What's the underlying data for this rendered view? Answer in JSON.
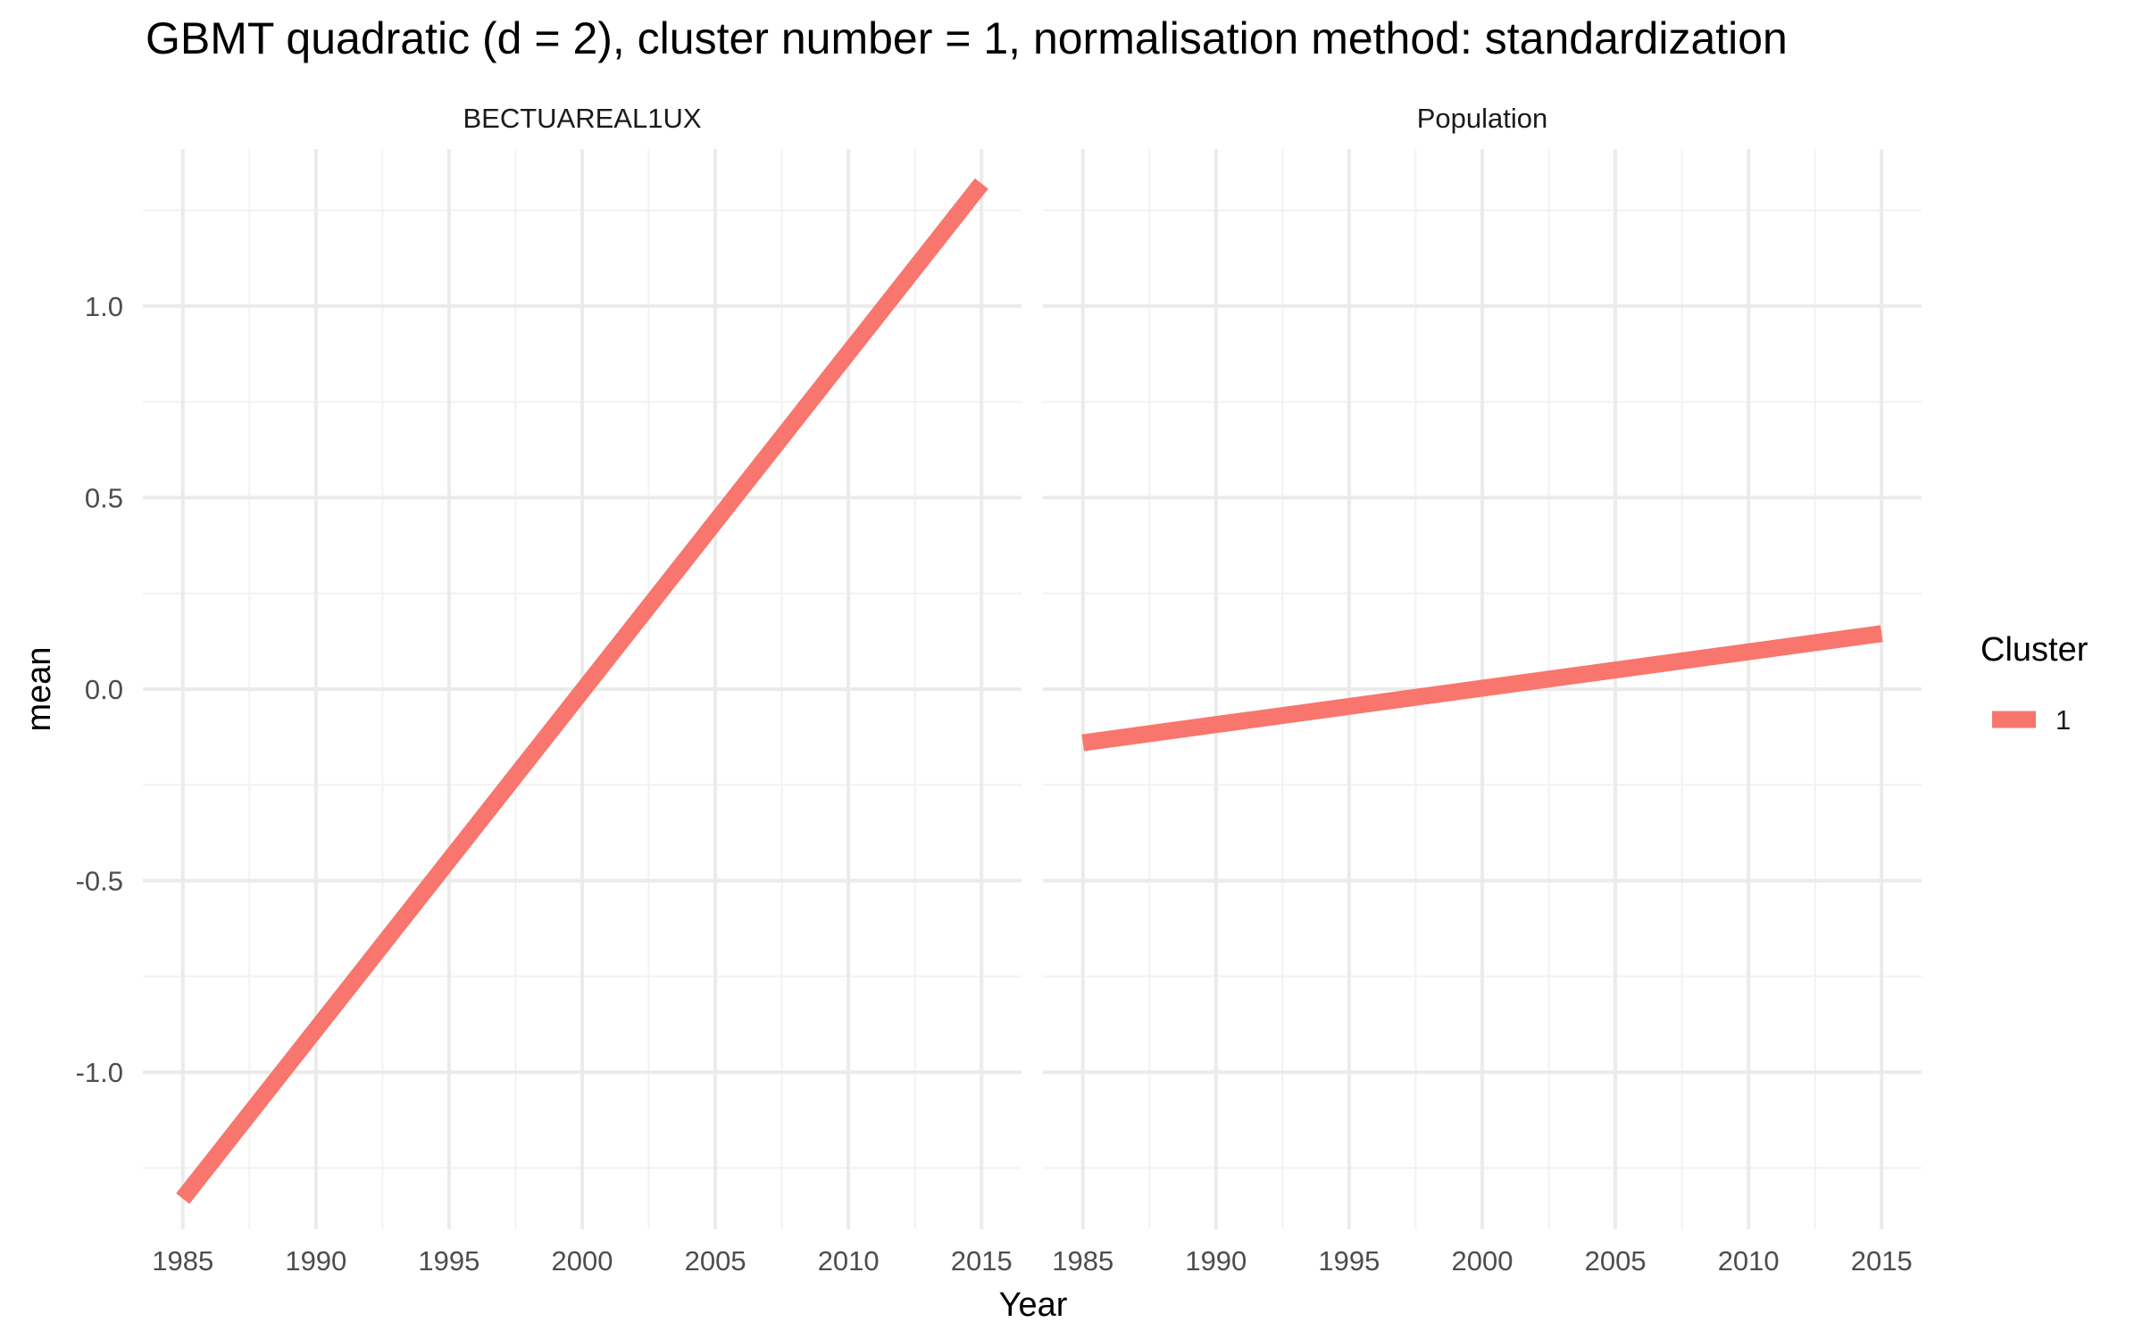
{
  "chart_data": {
    "type": "line",
    "title": "GBMT quadratic (d = 2), cluster number = 1, normalisation method: standardization",
    "xlabel": "Year",
    "ylabel": "mean",
    "xlim": [
      1983.5,
      2016.5
    ],
    "ylim": [
      -1.41,
      1.41
    ],
    "x_ticks": [
      1985,
      1990,
      1995,
      2000,
      2005,
      2010,
      2015
    ],
    "x_tick_labels": [
      "1985",
      "1990",
      "1995",
      "2000",
      "2005",
      "2010",
      "2015"
    ],
    "y_ticks": [
      -1.0,
      -0.5,
      0.0,
      0.5,
      1.0
    ],
    "y_tick_labels": [
      "-1.0",
      "-0.5",
      "0.0",
      "0.5",
      "1.0"
    ],
    "grid": true,
    "legend": {
      "title": "Cluster",
      "placement": "right",
      "entries": [
        {
          "label": "1",
          "color": "#F8766D"
        }
      ]
    },
    "facets": [
      {
        "strip_label": "BECTUAREAL1UX",
        "series": [
          {
            "cluster": "1",
            "color": "#F8766D",
            "x": [
              1985,
              2015
            ],
            "y": [
              -1.33,
              1.32
            ]
          }
        ]
      },
      {
        "strip_label": "Population",
        "series": [
          {
            "cluster": "1",
            "color": "#F8766D",
            "x": [
              1985,
              2015
            ],
            "y": [
              -0.14,
              0.145
            ]
          }
        ]
      }
    ]
  }
}
